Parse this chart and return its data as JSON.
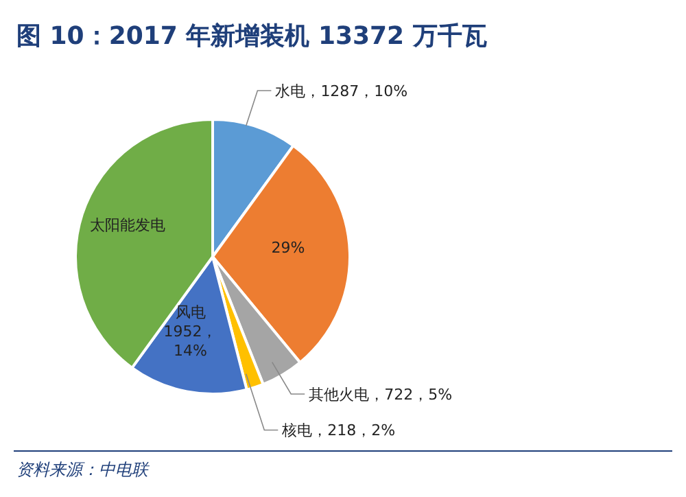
{
  "chart_data": {
    "type": "pie",
    "title": "图 10：2017 年新增装机 13372 万千瓦",
    "categories": [
      "水电",
      null,
      "其他火电",
      "核电",
      "风电",
      "太阳能发电"
    ],
    "values": [
      10,
      29,
      5,
      2,
      14,
      40
    ],
    "colors": [
      "#5b9bd5",
      "#ed7d31",
      "#a5a5a5",
      "#ffc000",
      "#4472c4",
      "#70ad47"
    ],
    "value_labels": [
      "1287，10%",
      "29%",
      "722，5%",
      "218，2%",
      "1952，14%",
      null
    ],
    "annotations": [
      "资料来源：中电联"
    ]
  }
}
